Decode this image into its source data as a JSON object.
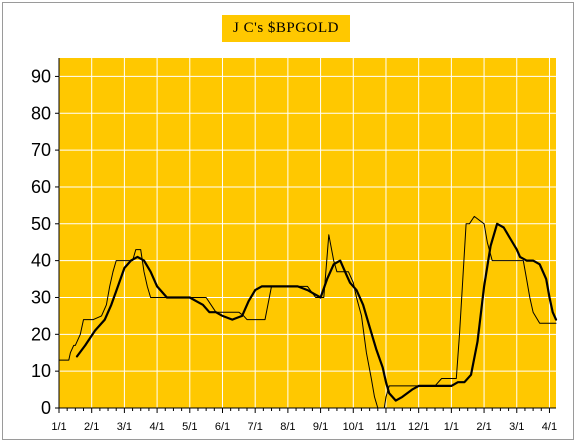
{
  "chart_data": {
    "type": "line",
    "title": "J C's $BPGOLD",
    "xlabel": "",
    "ylabel": "",
    "ylim": [
      0,
      95
    ],
    "xlim": [
      0,
      15.2
    ],
    "grid": true,
    "x_ticks": [
      "1/1",
      "2/1",
      "3/1",
      "4/1",
      "5/1",
      "6/1",
      "7/1",
      "8/1",
      "9/1",
      "10/1",
      "11/1",
      "12/1",
      "1/1",
      "2/1",
      "3/1",
      "4/1"
    ],
    "y_ticks": [
      0,
      10,
      20,
      30,
      40,
      50,
      60,
      70,
      80,
      90
    ],
    "colors": {
      "plot_bg": "#ffc800",
      "grid": "#ffffff",
      "line": "#000000"
    },
    "series": [
      {
        "style": "thin-step",
        "x": [
          0,
          0.3,
          0.35,
          0.45,
          0.5,
          0.65,
          0.75,
          1.05,
          1.3,
          1.45,
          1.55,
          1.65,
          1.75,
          2.0,
          2.25,
          2.35,
          2.5,
          2.6,
          2.7,
          2.8,
          2.85,
          3.0,
          3.5,
          3.7,
          4.0,
          4.5,
          4.65,
          4.8,
          5.0,
          5.5,
          5.65,
          5.75,
          6.0,
          6.3,
          6.5,
          7.0,
          7.5,
          7.6,
          7.85,
          8.0,
          8.1,
          8.25,
          8.4,
          8.5,
          8.7,
          8.85,
          9.0,
          9.1,
          9.25,
          9.4,
          9.55,
          9.65,
          9.75,
          9.85,
          9.95,
          10.0,
          10.1,
          10.3,
          10.5,
          11.0,
          11.5,
          11.7,
          12.0,
          12.15,
          12.25,
          12.35,
          12.45,
          12.55,
          12.7,
          12.85,
          13.0,
          13.1,
          13.25,
          13.5,
          14.0,
          14.2,
          14.3,
          14.4,
          14.5,
          14.7,
          15.0,
          15.2
        ],
        "y": [
          13,
          13,
          15,
          17,
          17,
          20,
          24,
          24,
          25,
          28,
          33,
          37,
          40,
          40,
          40,
          43,
          43,
          37,
          33,
          30,
          30,
          30,
          30,
          30,
          30,
          30,
          28,
          26,
          26,
          26,
          25,
          24,
          24,
          24,
          33,
          33,
          33,
          33,
          30,
          30,
          30,
          47,
          40,
          37,
          37,
          37,
          34,
          30,
          25,
          15,
          8,
          3,
          0,
          0,
          0,
          3,
          6,
          6,
          6,
          6,
          6,
          8,
          8,
          8,
          20,
          35,
          50,
          50,
          52,
          51,
          50,
          45,
          40,
          40,
          40,
          40,
          35,
          30,
          26,
          23,
          23,
          23
        ]
      },
      {
        "style": "bold-smooth",
        "x": [
          0.55,
          0.8,
          1.1,
          1.4,
          1.6,
          1.8,
          2.0,
          2.2,
          2.4,
          2.6,
          2.8,
          3.0,
          3.3,
          3.6,
          3.8,
          4.0,
          4.2,
          4.4,
          4.6,
          4.8,
          5.0,
          5.3,
          5.6,
          5.8,
          6.0,
          6.2,
          6.4,
          6.6,
          6.8,
          7.0,
          7.3,
          7.6,
          7.8,
          8.0,
          8.2,
          8.4,
          8.6,
          8.8,
          8.9,
          9.1,
          9.3,
          9.5,
          9.7,
          9.9,
          10.0,
          10.1,
          10.3,
          10.5,
          10.8,
          11.0,
          11.2,
          11.5,
          11.8,
          12.0,
          12.2,
          12.4,
          12.6,
          12.8,
          13.0,
          13.2,
          13.4,
          13.6,
          13.8,
          14.0,
          14.1,
          14.3,
          14.5,
          14.7,
          14.9,
          15.0,
          15.1,
          15.2
        ],
        "y": [
          14,
          17,
          21,
          24,
          28,
          33,
          38,
          40,
          41,
          40,
          37,
          33,
          30,
          30,
          30,
          30,
          29,
          28,
          26,
          26,
          25,
          24,
          25,
          29,
          32,
          33,
          33,
          33,
          33,
          33,
          33,
          32,
          31,
          30,
          35,
          39,
          40,
          36,
          34,
          32,
          28,
          22,
          16,
          11,
          7,
          4,
          2,
          3,
          5,
          6,
          6,
          6,
          6,
          6,
          7,
          7,
          9,
          18,
          33,
          44,
          50,
          49,
          46,
          43,
          41,
          40,
          40,
          39,
          35,
          30,
          26,
          24
        ]
      }
    ]
  }
}
